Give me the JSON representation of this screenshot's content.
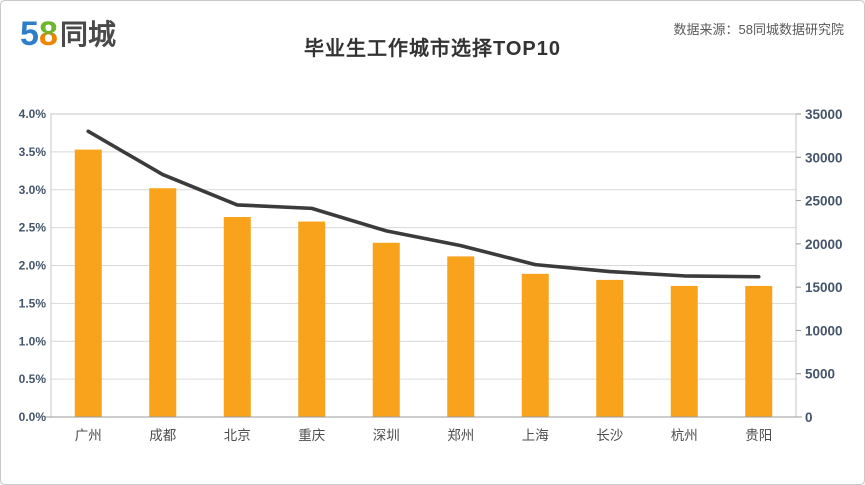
{
  "header": {
    "logo": {
      "digit5": "5",
      "digit8": "8",
      "wordmark": "同城",
      "digit5_color": "#2E7FC9",
      "digit8_top_color": "#6CB52D",
      "digit8_bottom_color": "#F08300",
      "wordmark_color": "#4A4A4A"
    },
    "title": "毕业生工作城市选择TOP10",
    "source": "数据来源：58同城数据研究院"
  },
  "chart_data": {
    "type": "combo-bar-line",
    "title": "毕业生工作城市选择TOP10",
    "categories": [
      "广州",
      "成都",
      "北京",
      "重庆",
      "深圳",
      "郑州",
      "上海",
      "长沙",
      "杭州",
      "贵阳"
    ],
    "series": [
      {
        "id": "city-share-bars",
        "type": "bar",
        "axis": "left",
        "unit": "%",
        "values": [
          3.53,
          3.02,
          2.64,
          2.58,
          2.3,
          2.12,
          1.89,
          1.81,
          1.73,
          1.73
        ],
        "color": "#F9A21B"
      },
      {
        "id": "trend-line",
        "type": "line",
        "axis": "right",
        "values": [
          33000,
          28000,
          24500,
          24100,
          21500,
          19800,
          17600,
          16800,
          16300,
          16200
        ],
        "color": "#3B3B3B"
      }
    ],
    "left_axis": {
      "min": 0,
      "max": 4,
      "tick_values": [
        0,
        0.5,
        1,
        1.5,
        2,
        2.5,
        3,
        3.5,
        4
      ],
      "tick_labels": [
        "0.0%",
        "0.5%",
        "1.0%",
        "1.5%",
        "2.0%",
        "2.5%",
        "3.0%",
        "3.5%",
        "4.0%"
      ]
    },
    "right_axis": {
      "min": 0,
      "max": 35000,
      "tick_values": [
        0,
        5000,
        10000,
        15000,
        20000,
        25000,
        30000,
        35000
      ],
      "tick_labels": [
        "0",
        "5000",
        "10000",
        "15000",
        "20000",
        "25000",
        "30000",
        "35000"
      ]
    },
    "grid": true,
    "legend": "none",
    "colors": {
      "grid": "#D9D9D9",
      "plot_border": "#C6C6C6",
      "axis_line": "#9B9B9B",
      "tick_label": "#44546A",
      "category_label": "#4D4D4D"
    }
  }
}
